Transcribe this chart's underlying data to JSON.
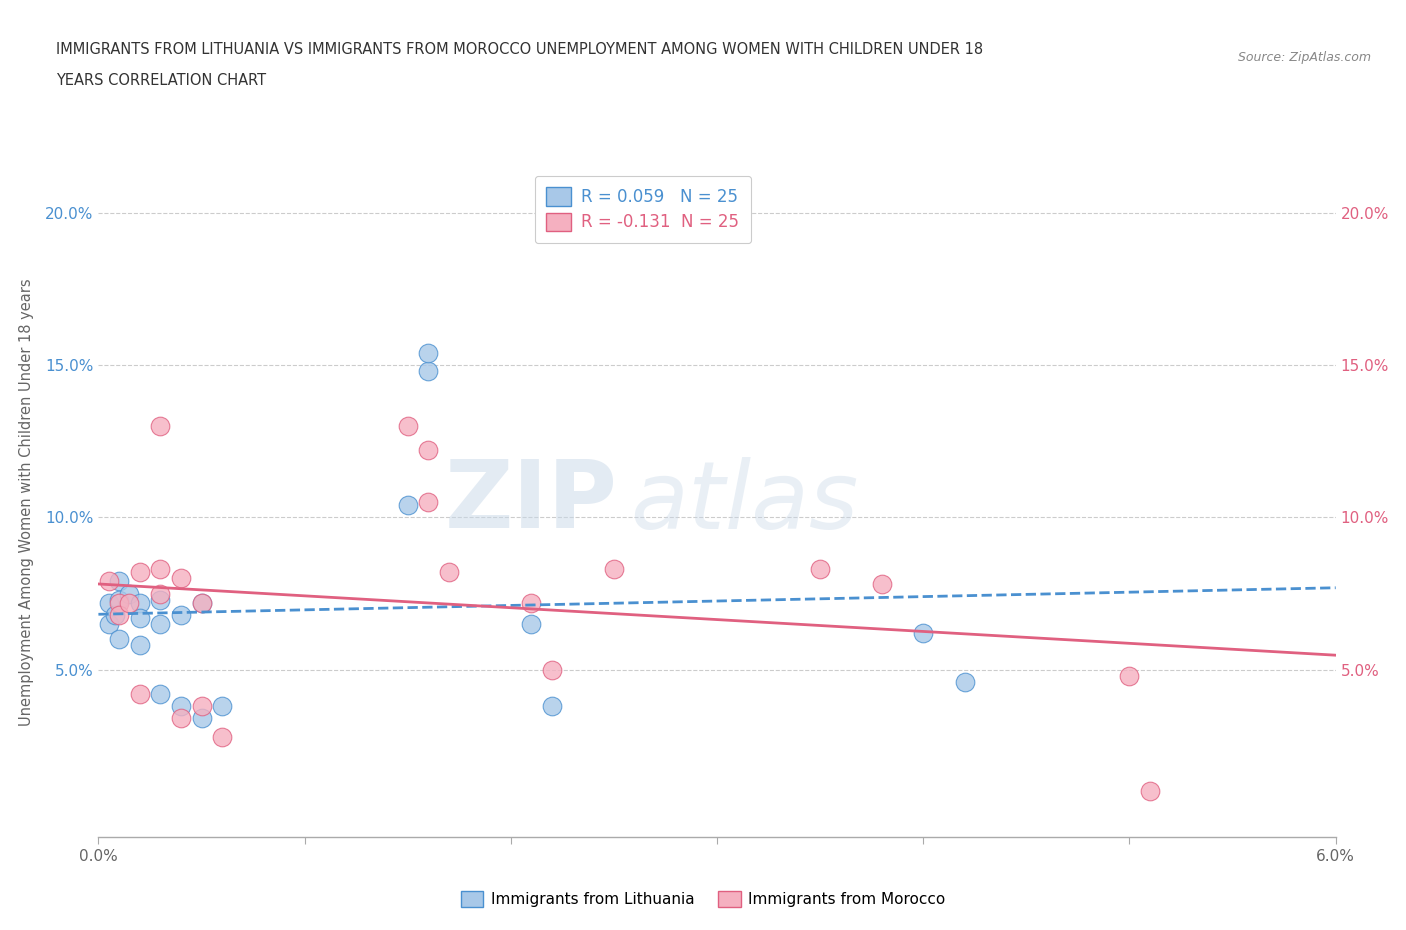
{
  "title_line1": "IMMIGRANTS FROM LITHUANIA VS IMMIGRANTS FROM MOROCCO UNEMPLOYMENT AMONG WOMEN WITH CHILDREN UNDER 18",
  "title_line2": "YEARS CORRELATION CHART",
  "source_text": "Source: ZipAtlas.com",
  "ylabel": "Unemployment Among Women with Children Under 18 years",
  "xlim": [
    0.0,
    0.06
  ],
  "ylim": [
    -0.005,
    0.215
  ],
  "ytick_vals": [
    0.05,
    0.1,
    0.15,
    0.2
  ],
  "ytick_labels_left": [
    "5.0%",
    "10.0%",
    "15.0%",
    "20.0%"
  ],
  "ytick_labels_right": [
    "5.0%",
    "10.0%",
    "15.0%",
    "20.0%"
  ],
  "xtick_vals": [
    0.0,
    0.01,
    0.02,
    0.03,
    0.04,
    0.05,
    0.06
  ],
  "legend_r1": "R = 0.059   N = 25",
  "legend_r2": "R = -0.131  N = 25",
  "color_lithuania": "#a8c8e8",
  "color_morocco": "#f5b0c0",
  "line_color_lithuania": "#4a90d0",
  "line_color_morocco": "#e06080",
  "background_color": "#ffffff",
  "watermark_line1": "ZIP",
  "watermark_line2": "atlas",
  "legend_label1": "Immigrants from Lithuania",
  "legend_label2": "Immigrants from Morocco",
  "lithuania_x": [
    0.0005,
    0.0005,
    0.0008,
    0.001,
    0.001,
    0.001,
    0.0015,
    0.002,
    0.002,
    0.002,
    0.003,
    0.003,
    0.003,
    0.004,
    0.004,
    0.005,
    0.005,
    0.006,
    0.015,
    0.016,
    0.016,
    0.021,
    0.022,
    0.04,
    0.042
  ],
  "lithuania_y": [
    0.072,
    0.065,
    0.068,
    0.079,
    0.073,
    0.06,
    0.075,
    0.072,
    0.067,
    0.058,
    0.073,
    0.065,
    0.042,
    0.068,
    0.038,
    0.072,
    0.034,
    0.038,
    0.104,
    0.148,
    0.154,
    0.065,
    0.038,
    0.062,
    0.046
  ],
  "morocco_x": [
    0.0005,
    0.001,
    0.001,
    0.0015,
    0.002,
    0.002,
    0.003,
    0.003,
    0.003,
    0.004,
    0.004,
    0.005,
    0.005,
    0.006,
    0.015,
    0.016,
    0.016,
    0.017,
    0.021,
    0.022,
    0.025,
    0.035,
    0.038,
    0.05,
    0.051
  ],
  "morocco_y": [
    0.079,
    0.072,
    0.068,
    0.072,
    0.082,
    0.042,
    0.083,
    0.13,
    0.075,
    0.08,
    0.034,
    0.072,
    0.038,
    0.028,
    0.13,
    0.122,
    0.105,
    0.082,
    0.072,
    0.05,
    0.083,
    0.083,
    0.078,
    0.048,
    0.01
  ]
}
